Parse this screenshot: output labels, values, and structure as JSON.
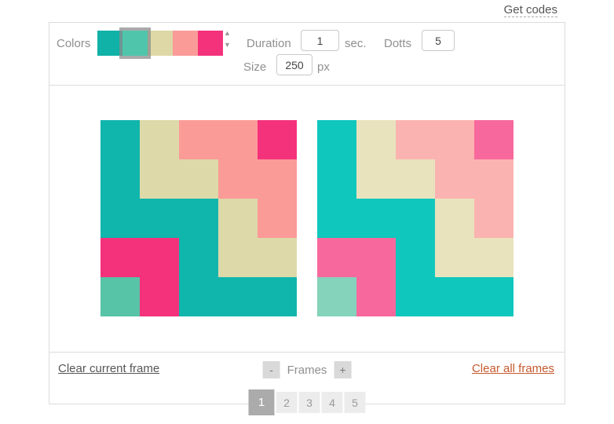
{
  "header": {
    "get_codes_label": "Get codes"
  },
  "toolbar": {
    "colors_label": "Colors",
    "palette": [
      {
        "name": "teal",
        "hex": "#10b1a7",
        "selected": false
      },
      {
        "name": "seafoam",
        "hex": "#4fc6ab",
        "selected": true
      },
      {
        "name": "khaki",
        "hex": "#ddd8a6",
        "selected": false
      },
      {
        "name": "salmon",
        "hex": "#fb9b98",
        "selected": false
      },
      {
        "name": "pink",
        "hex": "#f4327c",
        "selected": false
      }
    ],
    "palette_up_icon": "▲",
    "palette_down_icon": "▼",
    "duration_label": "Duration",
    "duration_value": "1",
    "duration_unit": "sec.",
    "dotts_label": "Dotts",
    "dotts_value": "5",
    "size_label": "Size",
    "size_value": "250",
    "size_unit": "px"
  },
  "editor": {
    "rows": 5,
    "cols": 5,
    "frames": [
      {
        "role": "current-frame-canvas",
        "colors": {
          "t": "#10b5ac",
          "s": "#57c3a7",
          "k": "#ddd9a9",
          "m": "#fb9b98",
          "p": "#f4327c"
        },
        "cells": [
          [
            "t",
            "k",
            "m",
            "m",
            "p"
          ],
          [
            "t",
            "k",
            "k",
            "m",
            "m"
          ],
          [
            "t",
            "t",
            "t",
            "k",
            "m"
          ],
          [
            "p",
            "p",
            "t",
            "k",
            "k"
          ],
          [
            "s",
            "p",
            "t",
            "t",
            "t"
          ]
        ]
      },
      {
        "role": "animation-preview",
        "colors": {
          "t": "#0fc7bd",
          "s": "#85d3ba",
          "k": "#e8e3bd",
          "m": "#fbb3b1",
          "p": "#f7699d"
        },
        "cells": [
          [
            "t",
            "k",
            "m",
            "m",
            "p"
          ],
          [
            "t",
            "k",
            "k",
            "m",
            "m"
          ],
          [
            "t",
            "t",
            "t",
            "k",
            "m"
          ],
          [
            "p",
            "p",
            "t",
            "k",
            "k"
          ],
          [
            "s",
            "p",
            "t",
            "t",
            "t"
          ]
        ]
      }
    ]
  },
  "footer": {
    "clear_current_label": "Clear current frame",
    "frames_minus_label": "-",
    "frames_label": "Frames",
    "frames_plus_label": "+",
    "clear_all_label": "Clear all frames",
    "frame_pages": [
      {
        "label": "1",
        "active": true
      },
      {
        "label": "2",
        "active": false
      },
      {
        "label": "3",
        "active": false
      },
      {
        "label": "4",
        "active": false
      },
      {
        "label": "5",
        "active": false
      }
    ]
  }
}
